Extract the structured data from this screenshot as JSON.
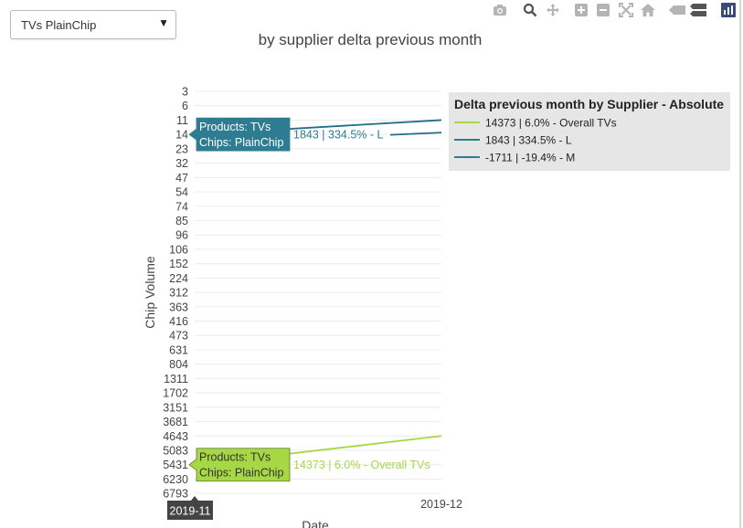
{
  "dropdown": {
    "selected": "TVs PlainChip"
  },
  "modebar": {
    "icons": [
      "camera-icon",
      "zoom-icon",
      "pan-icon",
      "zoom-in-icon",
      "zoom-out-icon",
      "autoscale-icon",
      "home-icon",
      "hover-closest-icon",
      "hover-compare-icon",
      "plotly-logo-icon"
    ]
  },
  "chart_data": {
    "type": "line",
    "title": "by supplier delta previous month",
    "xlabel": "Date",
    "ylabel": "Chip Volume",
    "categories": [
      "2019-11",
      "2019-12"
    ],
    "y_tick_labels": [
      "3",
      "6",
      "11",
      "14",
      "23",
      "32",
      "47",
      "54",
      "74",
      "85",
      "96",
      "106",
      "152",
      "224",
      "312",
      "363",
      "416",
      "473",
      "631",
      "804",
      "1311",
      "1702",
      "3151",
      "3681",
      "4643",
      "5083",
      "5431",
      "6230",
      "6793"
    ],
    "y_categorical_reversed": true,
    "grid": true,
    "legend": {
      "title": "Delta previous month by Supplier - Absolute",
      "placement": "top-right",
      "entries": [
        {
          "label": "14373 |    6.0% - Overall TVs",
          "color": "#a6d846"
        },
        {
          "label": "1843 |  334.5% - L",
          "color": "#2e7c92"
        },
        {
          "label": "-1711 |  -19.4% - M",
          "color": "#2e7c92"
        }
      ]
    },
    "series": [
      {
        "name": "14373 |    6.0% - Overall TVs",
        "color": "#a6d846",
        "x": [
          "2019-11",
          "2019-12"
        ],
        "y": [
          "5431",
          "4643"
        ]
      },
      {
        "name": "1843 |  334.5% - L",
        "color": "#1f6f87",
        "x": [
          "2019-11",
          "2019-12"
        ],
        "y": [
          "14",
          "11"
        ]
      }
    ],
    "hover": [
      {
        "series": 1,
        "x": "2019-11",
        "box_lines": [
          "Products: TVs",
          "Chips: PlainChip"
        ],
        "side_label": "1843 |  334.5% - L",
        "box_color": "#2e7c92",
        "text_color": "#ffffff",
        "label_color": "#2e7c92"
      },
      {
        "series": 0,
        "x": "2019-11",
        "box_lines": [
          "Products: TVs",
          "Chips: PlainChip"
        ],
        "side_label": "14373 |    6.0% - Overall TVs",
        "box_color": "#a6d846",
        "text_color": "#333333",
        "label_color": "#a6d846"
      }
    ],
    "x_hover_label": "2019-11"
  }
}
